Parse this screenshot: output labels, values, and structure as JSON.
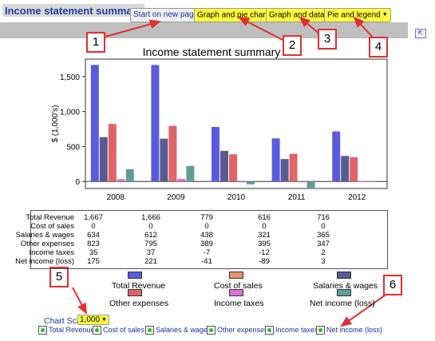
{
  "header": {
    "title": "Income statement summary",
    "buttons": [
      {
        "label": "Start on new page"
      },
      {
        "label": "Graph and pie chart"
      },
      {
        "label": "Graph and data"
      },
      {
        "label": "Pie and legend"
      }
    ]
  },
  "callouts": [
    "1",
    "2",
    "3",
    "4",
    "5",
    "6"
  ],
  "chart_data": {
    "type": "bar",
    "title": "Income statement summary",
    "ylabel": "$ (1,000's)",
    "xlabel": "",
    "categories": [
      "2008",
      "2009",
      "2010",
      "2011",
      "2012"
    ],
    "ylim": [
      -100,
      1750
    ],
    "yticks": [
      "1,500",
      "1,000",
      "500",
      "0"
    ],
    "series": [
      {
        "name": "Total Revenue",
        "color": "#5b5bdf",
        "values": [
          1667,
          1666,
          779,
          616,
          716
        ]
      },
      {
        "name": "Salaries & wages",
        "color": "#5a5a92",
        "values": [
          634,
          612,
          438,
          321,
          365
        ]
      },
      {
        "name": "Other expenses",
        "color": "#e06466",
        "values": [
          823,
          795,
          389,
          395,
          347
        ]
      },
      {
        "name": "Income taxes",
        "color": "#d873d8",
        "values": [
          35,
          37,
          -7,
          -12,
          2
        ]
      },
      {
        "name": "Net income (loss)",
        "color": "#5f9e98",
        "values": [
          175,
          221,
          -41,
          -89,
          3
        ]
      }
    ]
  },
  "table": {
    "rows": [
      {
        "label": "Total Revenue",
        "values": [
          "1,667",
          "1,666",
          "779",
          "616",
          "716"
        ]
      },
      {
        "label": "Cost of sales",
        "values": [
          "0",
          "0",
          "0",
          "0",
          "0"
        ]
      },
      {
        "label": "Salaries & wages",
        "values": [
          "634",
          "612",
          "438",
          "321",
          "365"
        ]
      },
      {
        "label": "Other expenses",
        "values": [
          "823",
          "795",
          "389",
          "395",
          "347"
        ]
      },
      {
        "label": "Income taxes",
        "values": [
          "35",
          "37",
          "-7",
          "-12",
          "2"
        ]
      },
      {
        "label": "Net income (loss)",
        "values": [
          "175",
          "221",
          "-41",
          "-89",
          "3"
        ]
      }
    ]
  },
  "legend": [
    {
      "label": "Total Revenue",
      "color": "#5b5bdf"
    },
    {
      "label": "Cost of sales",
      "color": "#e8956a"
    },
    {
      "label": "Salaries & wages",
      "color": "#5a5a92"
    },
    {
      "label": "Other expenses",
      "color": "#e06466"
    },
    {
      "label": "Income taxes",
      "color": "#d873d8"
    },
    {
      "label": "Net income (loss)",
      "color": "#5f9e98"
    }
  ],
  "scale": {
    "label": "Chart Scale:",
    "value": "1,000"
  },
  "toggles": [
    {
      "label": "Total Revenue"
    },
    {
      "label": "Cost of sales"
    },
    {
      "label": "Salaries & wages"
    },
    {
      "label": "Other expenses"
    },
    {
      "label": "Income taxes"
    },
    {
      "label": "Net income (loss)"
    }
  ]
}
